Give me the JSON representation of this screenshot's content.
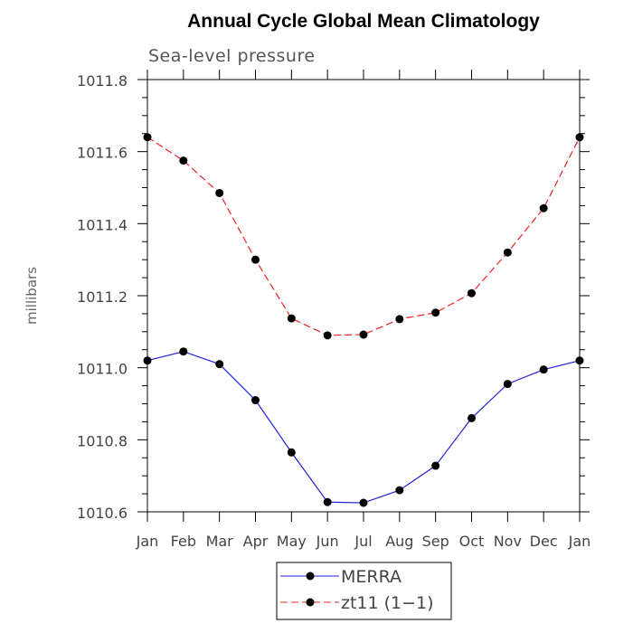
{
  "chart_data": {
    "type": "line",
    "title": "Annual Cycle Global Mean Climatology",
    "subtitle": "Sea-level pressure",
    "xlabel": "",
    "ylabel": "millibars",
    "categories": [
      "Jan",
      "Feb",
      "Mar",
      "Apr",
      "May",
      "Jun",
      "Jul",
      "Aug",
      "Sep",
      "Oct",
      "Nov",
      "Dec",
      "Jan"
    ],
    "ylim": [
      1010.6,
      1011.8
    ],
    "yticks": [
      "1010.6",
      "1010.8",
      "1011.0",
      "1011.2",
      "1011.4",
      "1011.6",
      "1011.8"
    ],
    "ytick_values": [
      1010.6,
      1010.8,
      1011.0,
      1011.2,
      1011.4,
      1011.6,
      1011.8
    ],
    "series": [
      {
        "name": "MERRA",
        "color": "#2222dd",
        "dash": "solid",
        "values": [
          1011.02,
          1011.045,
          1011.01,
          1010.91,
          1010.765,
          1010.627,
          1010.625,
          1010.66,
          1010.728,
          1010.86,
          1010.955,
          1010.995,
          1011.02
        ]
      },
      {
        "name": "zt11 (1-1)",
        "color": "#ee2222",
        "dash": "dashed",
        "values": [
          1011.64,
          1011.575,
          1011.485,
          1011.3,
          1011.137,
          1011.09,
          1011.092,
          1011.135,
          1011.153,
          1011.207,
          1011.32,
          1011.443,
          1011.64
        ]
      }
    ],
    "legend": {
      "position": "bottom-center",
      "entries": [
        "MERRA",
        "zt11 (1−1)"
      ]
    }
  }
}
